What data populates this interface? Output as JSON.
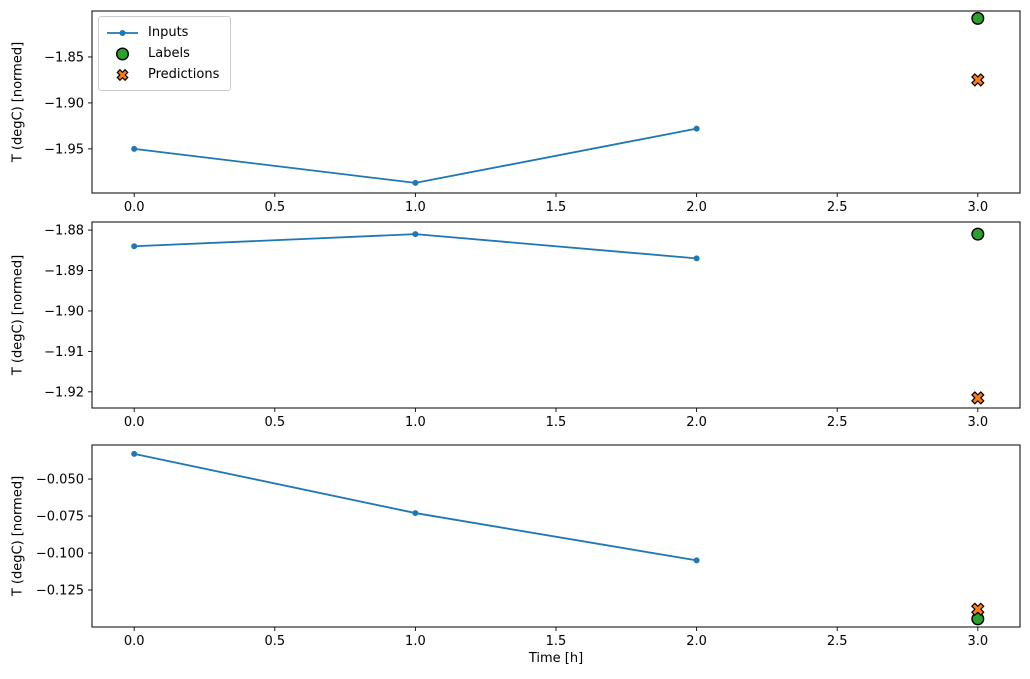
{
  "figure": {
    "background": "#ffffff",
    "xlabel": "Time [h]",
    "ylabel": "T (degC) [normed]",
    "frame_color": "#000000"
  },
  "legend": {
    "position": "upper left",
    "items": [
      {
        "label": "Inputs",
        "marker": "line-dot",
        "color": "#1f77b4",
        "edge_color": "#1f77b4"
      },
      {
        "label": "Labels",
        "marker": "circle",
        "color": "#2ca02c",
        "edge_color": "#000000"
      },
      {
        "label": "Predictions",
        "marker": "X",
        "color": "#ff7f0e",
        "edge_color": "#000000"
      }
    ]
  },
  "chart_data": [
    {
      "type": "line",
      "panel": "top",
      "title": "",
      "xlabel": "",
      "ylabel": "T (degC) [normed]",
      "grid": false,
      "xlim": [
        -0.15,
        3.15
      ],
      "ylim": [
        -1.998,
        -1.8
      ],
      "x_tick_values": [
        0.0,
        0.5,
        1.0,
        1.5,
        2.0,
        2.5,
        3.0
      ],
      "x_tick_labels": [
        "0.0",
        "0.5",
        "1.0",
        "1.5",
        "2.0",
        "2.5",
        "3.0"
      ],
      "y_tick_values": [
        -1.85,
        -1.9,
        -1.95
      ],
      "y_tick_labels": [
        "−1.85",
        "−1.90",
        "−1.95"
      ],
      "series": [
        {
          "name": "Inputs",
          "marker": "dot",
          "color": "#1f77b4",
          "edge_color": "#1f77b4",
          "x": [
            0,
            1,
            2
          ],
          "y": [
            -1.95,
            -1.987,
            -1.928
          ]
        },
        {
          "name": "Labels",
          "marker": "circle",
          "color": "#2ca02c",
          "edge_color": "#000000",
          "x": [
            3
          ],
          "y": [
            -1.808
          ]
        },
        {
          "name": "Predictions",
          "marker": "X",
          "color": "#ff7f0e",
          "edge_color": "#000000",
          "x": [
            3
          ],
          "y": [
            -1.875
          ]
        }
      ]
    },
    {
      "type": "line",
      "panel": "middle",
      "title": "",
      "xlabel": "",
      "ylabel": "T (degC) [normed]",
      "grid": false,
      "xlim": [
        -0.15,
        3.15
      ],
      "ylim": [
        -1.924,
        -1.878
      ],
      "x_tick_values": [
        0.0,
        0.5,
        1.0,
        1.5,
        2.0,
        2.5,
        3.0
      ],
      "x_tick_labels": [
        "0.0",
        "0.5",
        "1.0",
        "1.5",
        "2.0",
        "2.5",
        "3.0"
      ],
      "y_tick_values": [
        -1.88,
        -1.89,
        -1.9,
        -1.91,
        -1.92
      ],
      "y_tick_labels": [
        "−1.88",
        "−1.89",
        "−1.90",
        "−1.91",
        "−1.92"
      ],
      "series": [
        {
          "name": "Inputs",
          "marker": "dot",
          "color": "#1f77b4",
          "edge_color": "#1f77b4",
          "x": [
            0,
            1,
            2
          ],
          "y": [
            -1.884,
            -1.881,
            -1.887
          ]
        },
        {
          "name": "Labels",
          "marker": "circle",
          "color": "#2ca02c",
          "edge_color": "#000000",
          "x": [
            3
          ],
          "y": [
            -1.881
          ]
        },
        {
          "name": "Predictions",
          "marker": "X",
          "color": "#ff7f0e",
          "edge_color": "#000000",
          "x": [
            3
          ],
          "y": [
            -1.9215
          ]
        }
      ]
    },
    {
      "type": "line",
      "panel": "bottom",
      "title": "",
      "xlabel": "Time [h]",
      "ylabel": "T (degC) [normed]",
      "grid": false,
      "xlim": [
        -0.15,
        3.15
      ],
      "ylim": [
        -0.15,
        -0.027
      ],
      "x_tick_values": [
        0.0,
        0.5,
        1.0,
        1.5,
        2.0,
        2.5,
        3.0
      ],
      "x_tick_labels": [
        "0.0",
        "0.5",
        "1.0",
        "1.5",
        "2.0",
        "2.5",
        "3.0"
      ],
      "y_tick_values": [
        -0.05,
        -0.075,
        -0.1,
        -0.125
      ],
      "y_tick_labels": [
        "−0.050",
        "−0.075",
        "−0.100",
        "−0.125"
      ],
      "series": [
        {
          "name": "Inputs",
          "marker": "dot",
          "color": "#1f77b4",
          "edge_color": "#1f77b4",
          "x": [
            0,
            1,
            2
          ],
          "y": [
            -0.033,
            -0.073,
            -0.105
          ]
        },
        {
          "name": "Labels",
          "marker": "circle",
          "color": "#2ca02c",
          "edge_color": "#000000",
          "x": [
            3
          ],
          "y": [
            -0.1445
          ]
        },
        {
          "name": "Predictions",
          "marker": "X",
          "color": "#ff7f0e",
          "edge_color": "#000000",
          "x": [
            3
          ],
          "y": [
            -0.138
          ]
        }
      ]
    }
  ]
}
